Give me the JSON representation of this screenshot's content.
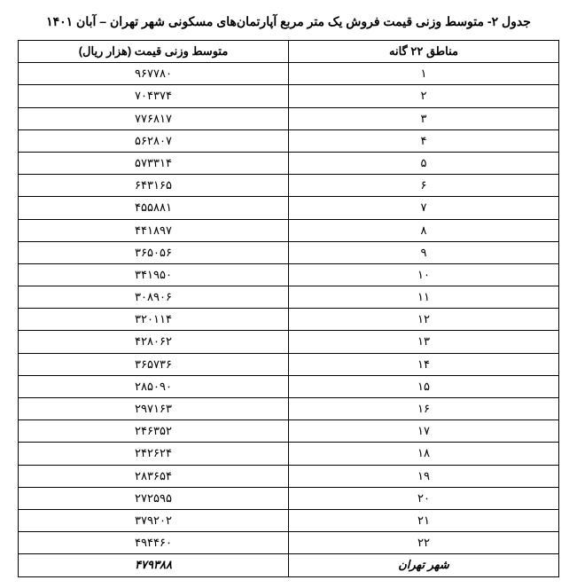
{
  "title": "جدول ۲- متوسط وزنی قیمت فروش یک متر مربع آپارتمان‌های مسکونی شهر تهران – آبان ۱۴۰۱",
  "columns": {
    "district": "مناطق ۲۲ گانه",
    "price": "متوسط وزنی قیمت (هزار ریال)"
  },
  "rows": [
    {
      "district": "۱",
      "price": "۹۶۷۷۸۰"
    },
    {
      "district": "۲",
      "price": "۷۰۴۳۷۴"
    },
    {
      "district": "۳",
      "price": "۷۷۶۸۱۷"
    },
    {
      "district": "۴",
      "price": "۵۶۲۸۰۷"
    },
    {
      "district": "۵",
      "price": "۵۷۳۳۱۴"
    },
    {
      "district": "۶",
      "price": "۶۴۳۱۶۵"
    },
    {
      "district": "۷",
      "price": "۴۵۵۸۸۱"
    },
    {
      "district": "۸",
      "price": "۴۴۱۸۹۷"
    },
    {
      "district": "۹",
      "price": "۳۶۵۰۵۶"
    },
    {
      "district": "۱۰",
      "price": "۳۴۱۹۵۰"
    },
    {
      "district": "۱۱",
      "price": "۳۰۸۹۰۶"
    },
    {
      "district": "۱۲",
      "price": "۳۲۰۱۱۴"
    },
    {
      "district": "۱۳",
      "price": "۴۲۸۰۶۲"
    },
    {
      "district": "۱۴",
      "price": "۳۶۵۷۳۶"
    },
    {
      "district": "۱۵",
      "price": "۲۸۵۰۹۰"
    },
    {
      "district": "۱۶",
      "price": "۲۹۷۱۶۳"
    },
    {
      "district": "۱۷",
      "price": "۲۴۶۳۵۲"
    },
    {
      "district": "۱۸",
      "price": "۲۴۲۶۲۴"
    },
    {
      "district": "۱۹",
      "price": "۲۸۳۶۵۴"
    },
    {
      "district": "۲۰",
      "price": "۲۷۲۵۹۵"
    },
    {
      "district": "۲۱",
      "price": "۳۷۹۲۰۲"
    },
    {
      "district": "۲۲",
      "price": "۴۹۴۴۶۰"
    }
  ],
  "total": {
    "district": "شهر تهران",
    "price": "۴۷۹۳۸۸"
  },
  "style": {
    "border_color": "#000000",
    "background_color": "#ffffff",
    "text_color": "#000000",
    "title_fontsize": 14,
    "cell_fontsize": 13,
    "col_widths_pct": [
      50,
      50
    ]
  }
}
